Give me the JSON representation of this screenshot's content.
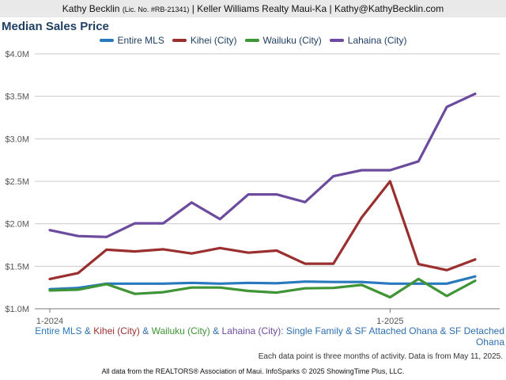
{
  "header": {
    "name": "Kathy Becklin",
    "license": "(Lic. No. #RB-21341)",
    "rest": "| Keller Williams Realty Maui-Ka | Kathy@KathyBecklin.com"
  },
  "footer": {
    "caption_parts": [
      "Entire MLS",
      " & ",
      "Kihei (City)",
      " & ",
      "Wailuku (City)",
      " & ",
      "Lahaina (City)",
      ": Single Family & SF Attached Ohana & SF Detached Ohana"
    ],
    "note": "Each data point is three months of activity. Data is from May 11, 2025.",
    "source": "All data from the REALTORS® Association of Maui. InfoSparks © 2025 ShowingTime Plus, LLC."
  },
  "chart_data": {
    "type": "line",
    "title": "Median Sales Price",
    "x": [
      "2024-01",
      "2024-02",
      "2024-03",
      "2024-04",
      "2024-05",
      "2024-06",
      "2024-07",
      "2024-08",
      "2024-09",
      "2024-10",
      "2024-11",
      "2024-12",
      "2025-01",
      "2025-02",
      "2025-03",
      "2025-04"
    ],
    "x_tick_labels": [
      "1-2024",
      "1-2025"
    ],
    "x_tick_positions": [
      "2024-01",
      "2025-01"
    ],
    "y_tick_labels": [
      "$1.0M",
      "$1.5M",
      "$2.0M",
      "$2.5M",
      "$3.0M",
      "$3.5M",
      "$4.0M"
    ],
    "ylim": [
      1000000,
      4000000
    ],
    "grid": true,
    "legend_position": "top",
    "series": [
      {
        "name": "Entire MLS",
        "color": "#2a79be",
        "values": [
          1230000,
          1245000,
          1295000,
          1295000,
          1295000,
          1305000,
          1295000,
          1305000,
          1300000,
          1320000,
          1315000,
          1315000,
          1295000,
          1295000,
          1295000,
          1380000
        ]
      },
      {
        "name": "Kihei (City)",
        "color": "#9b2f2f",
        "values": [
          1350000,
          1420000,
          1695000,
          1675000,
          1700000,
          1650000,
          1715000,
          1660000,
          1685000,
          1530000,
          1530000,
          2075000,
          2500000,
          1525000,
          1455000,
          1580000
        ]
      },
      {
        "name": "Wailuku (City)",
        "color": "#3f9435",
        "values": [
          1215000,
          1225000,
          1290000,
          1175000,
          1195000,
          1250000,
          1250000,
          1210000,
          1190000,
          1240000,
          1245000,
          1280000,
          1135000,
          1350000,
          1150000,
          1330000
        ]
      },
      {
        "name": "Lahaina (City)",
        "color": "#6c4a9e",
        "values": [
          1925000,
          1855000,
          1845000,
          2005000,
          2005000,
          2250000,
          2055000,
          2345000,
          2345000,
          2255000,
          2560000,
          2630000,
          2630000,
          2735000,
          3375000,
          3530000
        ]
      }
    ]
  }
}
